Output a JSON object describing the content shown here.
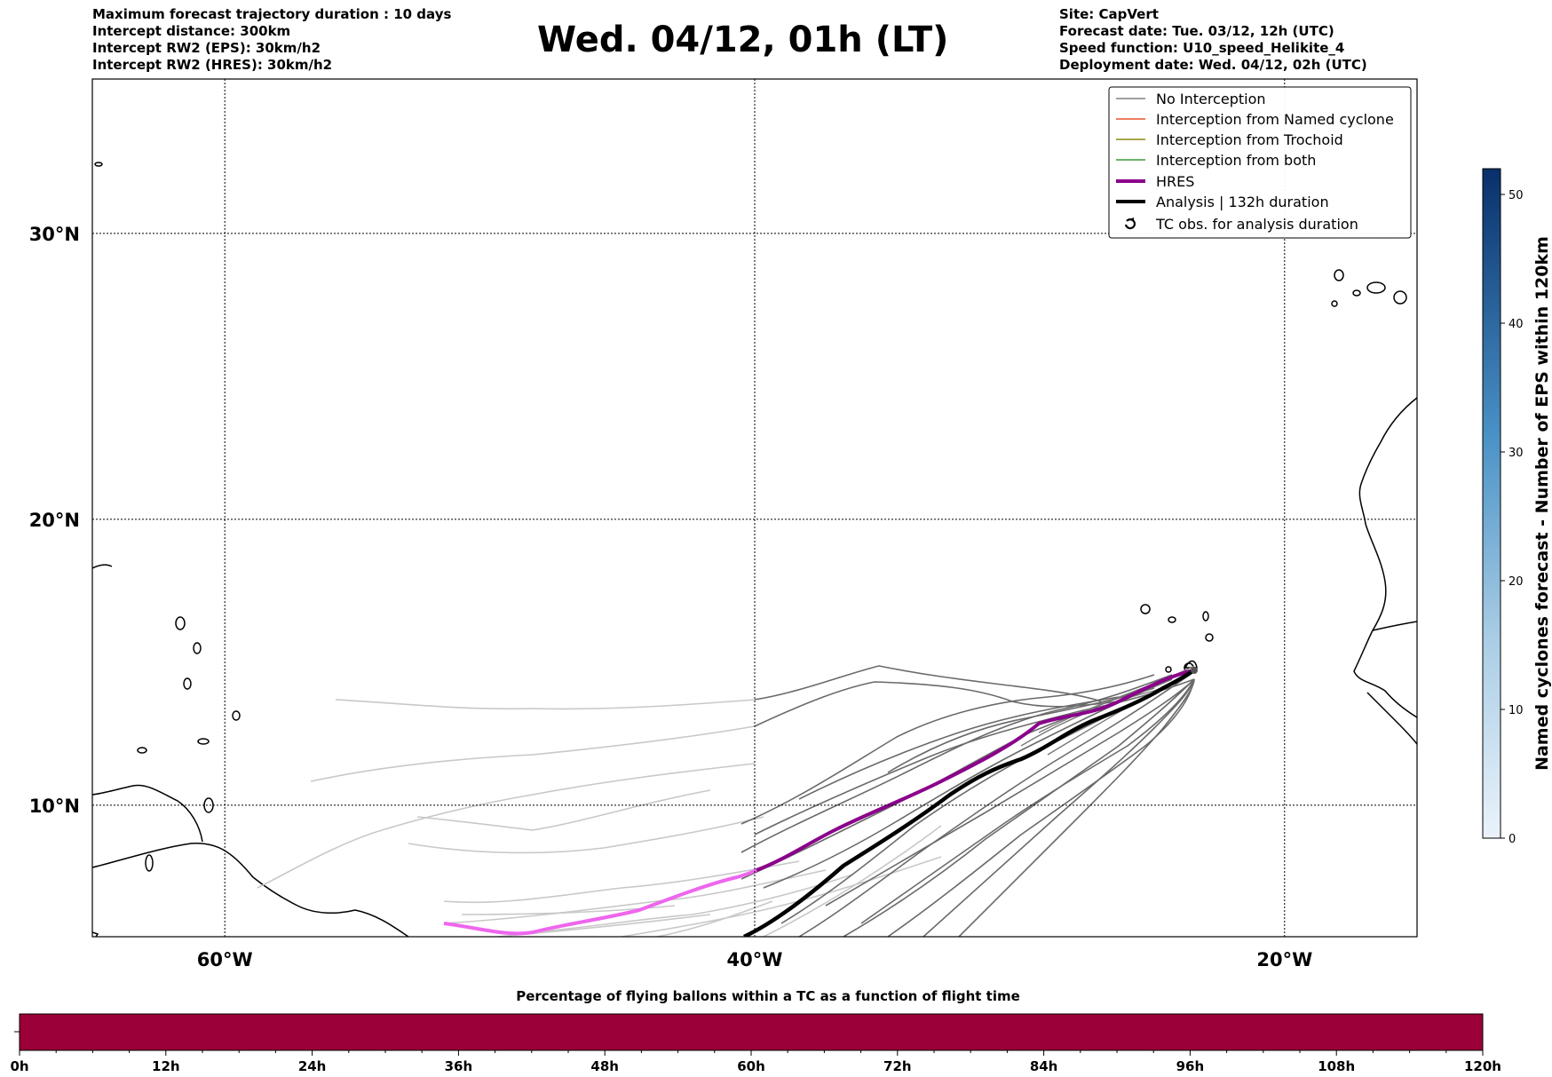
{
  "header": {
    "left": [
      "Maximum forecast trajectory duration : 10 days",
      "Intercept distance: 300km",
      "Intercept RW2 (EPS):  30km/h2",
      "Intercept RW2 (HRES): 30km/h2"
    ],
    "title": "Wed. 04/12, 01h (LT)",
    "right": [
      "Site: CapVert",
      "Forecast date: Tue. 03/12, 12h (UTC)",
      "Speed function: U10_speed_Helikite_4",
      "Deployment date: Wed. 04/12, 02h (UTC)"
    ]
  },
  "map": {
    "lon_range": [
      -65,
      -15
    ],
    "lat_range": [
      5.4,
      35.4
    ],
    "lat_ticks": [
      {
        "value": 30,
        "label": "30°N"
      },
      {
        "value": 20,
        "label": "20°N"
      },
      {
        "value": 10,
        "label": "10°N"
      }
    ],
    "lon_ticks": [
      {
        "value": -60,
        "label": "60°W"
      },
      {
        "value": -40,
        "label": "40°W"
      },
      {
        "value": -20,
        "label": "20°W"
      }
    ]
  },
  "legend": {
    "placement": "top-right",
    "items": [
      {
        "label": "No Interception",
        "color": "#808080",
        "style": "thin"
      },
      {
        "label": "Interception from Named cyclone",
        "color": "#e8542c",
        "style": "thin"
      },
      {
        "label": "Interception from Trochoid",
        "color": "#8a8a10",
        "style": "thin"
      },
      {
        "label": "Interception from both",
        "color": "#3a9a3a",
        "style": "thin"
      },
      {
        "label": "HRES",
        "color": "#8b008b",
        "style": "thick"
      },
      {
        "label": "Analysis | 132h duration",
        "color": "#000000",
        "style": "thick"
      },
      {
        "label": "TC obs. for analysis duration",
        "color": "#000000",
        "style": "marker",
        "icon": "cyclone-icon"
      }
    ]
  },
  "colorbar": {
    "label": "Named cyclones forecast - Number of EPS within 120km",
    "min": 0,
    "max": 52,
    "ticks": [
      0,
      10,
      20,
      30,
      40,
      50
    ],
    "color_low": "#e8f1fa",
    "color_high": "#0a3a78"
  },
  "percentage_bar": {
    "title": "Percentage of flying ballons within a TC as a function of flight time",
    "color": "#9b0038",
    "ticks": [
      "0h",
      "12h",
      "24h",
      "36h",
      "48h",
      "60h",
      "72h",
      "84h",
      "96h",
      "108h",
      "120h"
    ]
  }
}
